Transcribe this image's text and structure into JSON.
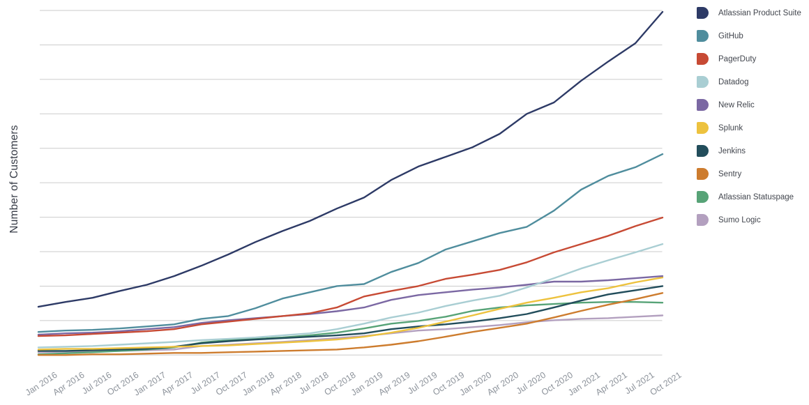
{
  "chart_data": {
    "type": "line",
    "title": "",
    "xlabel": "",
    "ylabel": "Number of Customers",
    "legend_position": "right",
    "grid": "horizontal-only",
    "x_tick_rotation_deg": -33,
    "y_axis": {
      "min": 0,
      "max": 10,
      "gridline_step": 1,
      "gridline_count": 11,
      "tick_labels_shown": false
    },
    "categories": [
      "Jan 2016",
      "Apr 2016",
      "Jul 2016",
      "Oct 2016",
      "Jan 2017",
      "Apr 2017",
      "Jul 2017",
      "Oct 2017",
      "Jan 2018",
      "Apr 2018",
      "Jul 2018",
      "Oct 2018",
      "Jan 2019",
      "Apr 2019",
      "Jul 2019",
      "Oct 2019",
      "Jan 2020",
      "Apr 2020",
      "Jul 2020",
      "Oct 2020",
      "Jan 2021",
      "Apr 2021",
      "Jul 2021",
      "Oct 2021"
    ],
    "units": "gridline units (y tick values not labeled in chart)",
    "series": [
      {
        "name": "Atlassian Product Suite",
        "slug": "atlassian-product-suite",
        "color": "#2d3a66",
        "values": [
          1.4,
          1.54,
          1.66,
          1.86,
          2.04,
          2.29,
          2.59,
          2.92,
          3.28,
          3.6,
          3.89,
          4.25,
          4.57,
          5.08,
          5.47,
          5.75,
          6.03,
          6.42,
          7.0,
          7.33,
          7.96,
          8.52,
          9.05,
          9.96
        ]
      },
      {
        "name": "GitHub",
        "slug": "github",
        "color": "#4f8d9d",
        "values": [
          0.67,
          0.71,
          0.73,
          0.77,
          0.83,
          0.89,
          1.05,
          1.13,
          1.36,
          1.64,
          1.82,
          2.0,
          2.06,
          2.41,
          2.67,
          3.06,
          3.3,
          3.54,
          3.72,
          4.19,
          4.8,
          5.2,
          5.45,
          5.83
        ]
      },
      {
        "name": "PagerDuty",
        "slug": "pagerduty",
        "color": "#c74a34",
        "values": [
          0.55,
          0.57,
          0.61,
          0.65,
          0.69,
          0.75,
          0.89,
          0.97,
          1.05,
          1.13,
          1.21,
          1.38,
          1.7,
          1.86,
          2.0,
          2.21,
          2.33,
          2.47,
          2.69,
          2.98,
          3.22,
          3.46,
          3.74,
          3.99
        ]
      },
      {
        "name": "Datadog",
        "slug": "datadog",
        "color": "#a9ced3",
        "values": [
          0.22,
          0.24,
          0.26,
          0.3,
          0.34,
          0.38,
          0.43,
          0.47,
          0.51,
          0.57,
          0.63,
          0.75,
          0.91,
          1.09,
          1.23,
          1.42,
          1.58,
          1.72,
          1.96,
          2.23,
          2.51,
          2.75,
          2.98,
          3.22
        ]
      },
      {
        "name": "New Relic",
        "slug": "new-relic",
        "color": "#7b68a3",
        "values": [
          0.59,
          0.63,
          0.65,
          0.69,
          0.75,
          0.81,
          0.93,
          1.01,
          1.07,
          1.13,
          1.19,
          1.27,
          1.38,
          1.6,
          1.74,
          1.82,
          1.9,
          1.96,
          2.04,
          2.13,
          2.13,
          2.17,
          2.23,
          2.29
        ]
      },
      {
        "name": "Splunk",
        "slug": "splunk",
        "color": "#edc23e",
        "values": [
          0.16,
          0.18,
          0.18,
          0.2,
          0.22,
          0.24,
          0.26,
          0.28,
          0.32,
          0.36,
          0.4,
          0.45,
          0.53,
          0.65,
          0.79,
          0.97,
          1.15,
          1.34,
          1.52,
          1.66,
          1.82,
          1.94,
          2.11,
          2.25
        ]
      },
      {
        "name": "Jenkins",
        "slug": "jenkins",
        "color": "#224d5b",
        "values": [
          0.12,
          0.12,
          0.14,
          0.16,
          0.18,
          0.24,
          0.34,
          0.4,
          0.45,
          0.49,
          0.53,
          0.57,
          0.63,
          0.75,
          0.83,
          0.89,
          0.97,
          1.07,
          1.19,
          1.38,
          1.58,
          1.76,
          1.88,
          2.0
        ]
      },
      {
        "name": "Sentry",
        "slug": "sentry",
        "color": "#cd7c2e",
        "values": [
          0.0,
          0.0,
          0.02,
          0.02,
          0.04,
          0.06,
          0.06,
          0.08,
          0.1,
          0.12,
          0.14,
          0.16,
          0.22,
          0.3,
          0.4,
          0.53,
          0.67,
          0.79,
          0.91,
          1.09,
          1.28,
          1.46,
          1.62,
          1.8
        ]
      },
      {
        "name": "Atlassian Statuspage",
        "slug": "atlassian-statuspage",
        "color": "#57a377",
        "values": [
          0.02,
          0.05,
          0.08,
          0.12,
          0.16,
          0.22,
          0.36,
          0.43,
          0.47,
          0.51,
          0.57,
          0.65,
          0.77,
          0.91,
          0.99,
          1.11,
          1.28,
          1.38,
          1.44,
          1.48,
          1.52,
          1.54,
          1.54,
          1.52
        ]
      },
      {
        "name": "Sumo Logic",
        "slug": "sumo-logic",
        "color": "#b3a0bf",
        "values": [
          0.08,
          0.1,
          0.1,
          0.12,
          0.14,
          0.16,
          0.26,
          0.3,
          0.34,
          0.38,
          0.43,
          0.49,
          0.55,
          0.63,
          0.71,
          0.75,
          0.81,
          0.87,
          0.95,
          1.01,
          1.05,
          1.07,
          1.11,
          1.15
        ]
      }
    ]
  }
}
